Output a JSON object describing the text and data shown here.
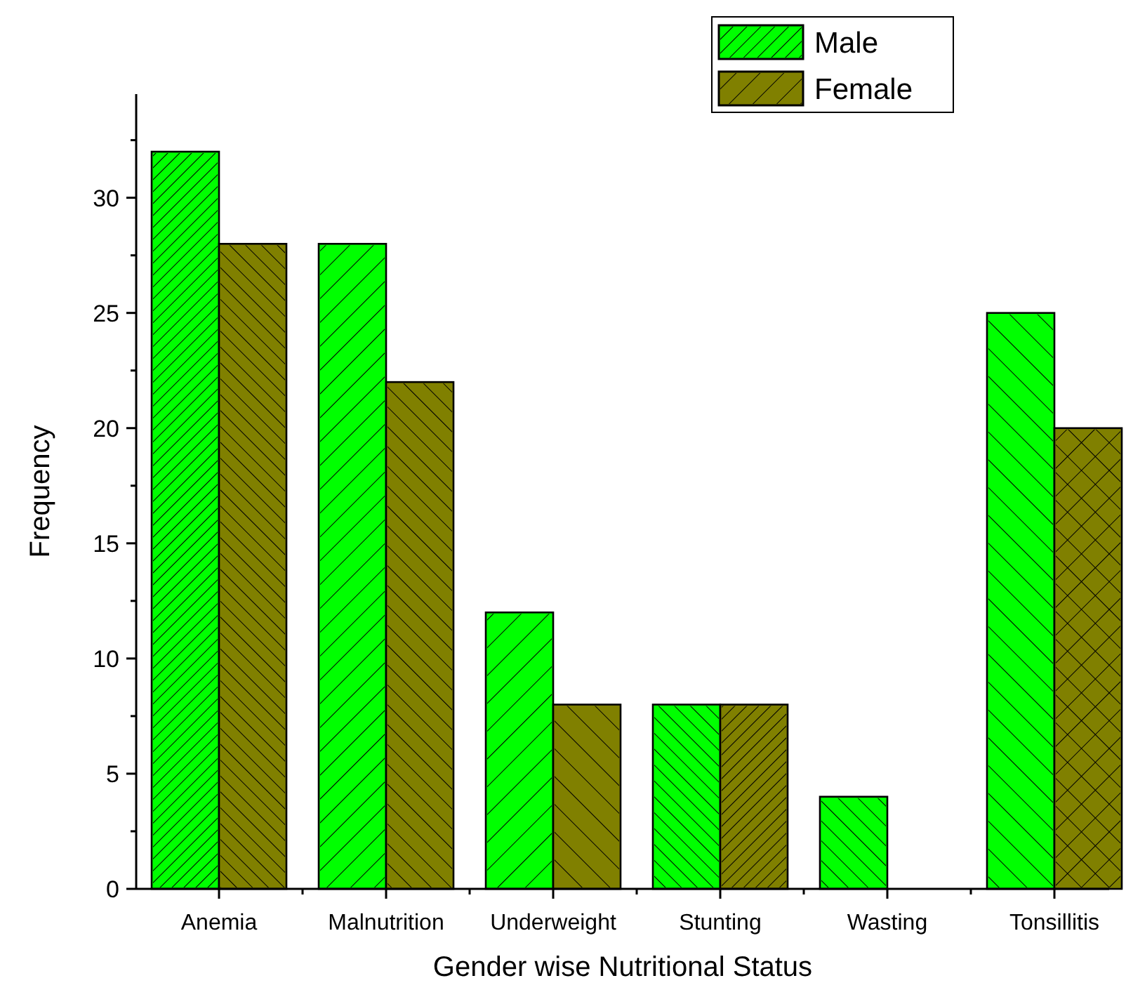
{
  "chart_data": {
    "type": "bar",
    "xlabel": "Gender wise Nutritional Status",
    "ylabel": "Frequency",
    "categories": [
      "Anemia",
      "Malnutrition",
      "Underweight",
      "Stunting",
      "Wasting",
      "Tonsillitis"
    ],
    "series": [
      {
        "name": "Male",
        "color": "#00ff00",
        "values": [
          32,
          28,
          12,
          8,
          4,
          25
        ]
      },
      {
        "name": "Female",
        "color": "#808000",
        "values": [
          28,
          22,
          8,
          8,
          0,
          20
        ]
      }
    ],
    "ylim": [
      0,
      34.5
    ],
    "yticks": [
      0,
      {
        "value": 2.5,
        "label": null
      },
      5,
      {
        "value": 7.5,
        "label": null
      },
      10,
      {
        "value": 12.5,
        "label": null
      },
      15,
      {
        "value": 17.5,
        "label": null
      },
      20,
      {
        "value": 22.5,
        "label": null
      },
      25,
      {
        "value": 27.5,
        "label": null
      },
      30,
      {
        "value": 32.5,
        "label": null
      }
    ],
    "legend": "top right",
    "grid": false
  }
}
